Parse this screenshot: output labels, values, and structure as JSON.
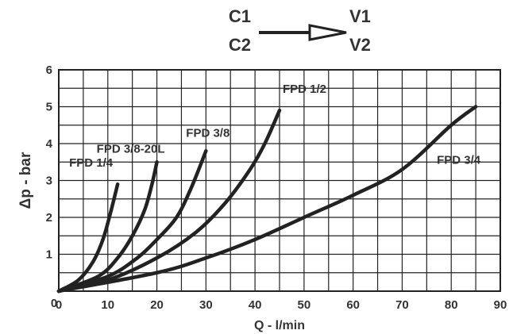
{
  "header": {
    "source_top": "C1",
    "source_bottom": "C2",
    "target_top": "V1",
    "target_bottom": "V2"
  },
  "chart_data": {
    "type": "line",
    "title": "",
    "xlabel": "Q - l/min",
    "ylabel": "Δp - bar",
    "xlim": [
      0,
      90
    ],
    "ylim": [
      0,
      6
    ],
    "x_ticks": [
      0,
      10,
      20,
      30,
      40,
      50,
      60,
      70,
      80,
      90
    ],
    "y_ticks": [
      1,
      2,
      3,
      4,
      5,
      6
    ],
    "y_zero_label": "0",
    "grid": true,
    "grid_x_step": 5,
    "grid_y_step": 0.5,
    "line_color": "#222222",
    "grid_color": "#222222",
    "series": [
      {
        "name": "FPD 1/4",
        "points": [
          [
            0,
            0
          ],
          [
            4,
            0.3
          ],
          [
            7,
            0.8
          ],
          [
            9,
            1.4
          ],
          [
            10.5,
            2.1
          ],
          [
            12,
            2.9
          ]
        ]
      },
      {
        "name": "FPD 3/8-20L",
        "points": [
          [
            0,
            0
          ],
          [
            8,
            0.4
          ],
          [
            12,
            0.9
          ],
          [
            15,
            1.5
          ],
          [
            17.5,
            2.2
          ],
          [
            19,
            2.9
          ],
          [
            20,
            3.5
          ]
        ]
      },
      {
        "name": "FPD 3/8",
        "points": [
          [
            0,
            0
          ],
          [
            10,
            0.4
          ],
          [
            16,
            0.9
          ],
          [
            20,
            1.4
          ],
          [
            24,
            2.0
          ],
          [
            27,
            2.8
          ],
          [
            30,
            3.8
          ]
        ]
      },
      {
        "name": "FPD 1/2",
        "points": [
          [
            0,
            0
          ],
          [
            10,
            0.3
          ],
          [
            20,
            0.9
          ],
          [
            28,
            1.6
          ],
          [
            34,
            2.4
          ],
          [
            39,
            3.3
          ],
          [
            42,
            4.0
          ],
          [
            45,
            4.9
          ]
        ]
      },
      {
        "name": "FPD 3/4",
        "points": [
          [
            0,
            0
          ],
          [
            20,
            0.5
          ],
          [
            30,
            0.9
          ],
          [
            40,
            1.4
          ],
          [
            50,
            2.0
          ],
          [
            60,
            2.6
          ],
          [
            70,
            3.3
          ],
          [
            80,
            4.5
          ],
          [
            85,
            5.0
          ]
        ]
      }
    ]
  }
}
